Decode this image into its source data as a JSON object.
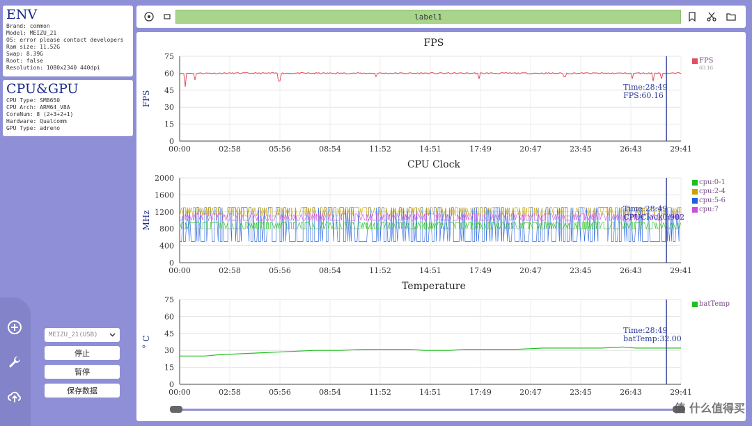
{
  "env": {
    "title": "ENV",
    "lines": [
      "Brand: common",
      "Model: MEIZU_21",
      "OS: error please contact developers",
      "Ram size: 11.52G",
      "Swap: 8.39G",
      "Root: false",
      "Resolution: 1080x2340 440dpi"
    ]
  },
  "cpu_gpu": {
    "title": "CPU&GPU",
    "lines": [
      "CPU Type: SM8650",
      "CPU Arch: ARM64_V8A",
      "CoreNum: 8 (2+3+2+1)",
      "Hardware: Qualcomm",
      "GPU Type: adreno"
    ]
  },
  "controls": {
    "device": "MEIZU_21(USB)",
    "stop_label": "停止",
    "pause_label": "暂停",
    "save_label": "保存数据"
  },
  "toolbar": {
    "label": "label1"
  },
  "watermark": "值 什么值得买",
  "colors": {
    "fps": "#e0505f",
    "cpu01": "#1fbf1f",
    "cpu24": "#c9a300",
    "cpu56": "#1f5fe0",
    "cpu7": "#c94fe0",
    "batTemp": "#1fbf1f",
    "cursor": "#3f4a9a"
  },
  "chart_data": [
    {
      "type": "line",
      "title": "FPS",
      "ylabel": "FPS",
      "ylim": [
        0,
        75
      ],
      "yticks": [
        0,
        15,
        30,
        45,
        60,
        75
      ],
      "xticks": [
        "00:00",
        "02:58",
        "05:56",
        "08:54",
        "11:52",
        "14:51",
        "17:49",
        "20:47",
        "23:45",
        "26:43",
        "29:41"
      ],
      "series": [
        {
          "name": "FPS",
          "legend_value": "60.16",
          "baseline": 60,
          "dips": [
            [
              0.3,
              48
            ],
            [
              0.9,
              54
            ],
            [
              5.9,
              53
            ],
            [
              11.6,
              57
            ],
            [
              17.7,
              55
            ],
            [
              22.8,
              57
            ],
            [
              26.8,
              55
            ],
            [
              28.0,
              53
            ],
            [
              28.5,
              55
            ]
          ]
        }
      ],
      "cursor": {
        "x": 28.82,
        "labels": [
          "Time:28:49",
          "FPS:60.16"
        ]
      }
    },
    {
      "type": "line",
      "title": "CPU Clock",
      "ylabel": "MHz",
      "ylim": [
        0,
        2000
      ],
      "yticks": [
        0,
        400,
        800,
        1200,
        1600,
        2000
      ],
      "xticks": [
        "00:00",
        "02:58",
        "05:56",
        "08:54",
        "11:52",
        "14:51",
        "17:49",
        "20:47",
        "23:45",
        "26:43",
        "29:41"
      ],
      "series": [
        {
          "name": "cpu:0-1",
          "low": 800,
          "high": 950
        },
        {
          "name": "cpu:2-4",
          "low": 1100,
          "high": 1300
        },
        {
          "name": "cpu:5-6",
          "low": 500,
          "high": 1300
        },
        {
          "name": "cpu:7",
          "low": 1000,
          "high": 1150
        }
      ],
      "cursor": {
        "x": 28.82,
        "labels": [
          "Time:28:49",
          "CPUClock0:902"
        ]
      }
    },
    {
      "type": "line",
      "title": "Temperature",
      "ylabel": "° C",
      "ylim": [
        0,
        75
      ],
      "yticks": [
        0,
        15,
        30,
        45,
        60,
        75
      ],
      "xticks": [
        "00:00",
        "02:58",
        "05:56",
        "08:54",
        "11:52",
        "14:51",
        "17:49",
        "20:47",
        "23:45",
        "26:43",
        "29:41"
      ],
      "series": [
        {
          "name": "batTemp",
          "points": [
            [
              0,
              25
            ],
            [
              1.5,
              25
            ],
            [
              2.2,
              26
            ],
            [
              3.5,
              27
            ],
            [
              5.0,
              28
            ],
            [
              6.5,
              29
            ],
            [
              8.0,
              30
            ],
            [
              9.5,
              30
            ],
            [
              11.0,
              31
            ],
            [
              13.5,
              31
            ],
            [
              14.5,
              30
            ],
            [
              16.0,
              30
            ],
            [
              17.0,
              31
            ],
            [
              20.0,
              31
            ],
            [
              21.5,
              32
            ],
            [
              25.0,
              32
            ],
            [
              26.2,
              33
            ],
            [
              27.0,
              32
            ],
            [
              29.68,
              32
            ]
          ]
        }
      ],
      "cursor": {
        "x": 28.82,
        "labels": [
          "Time:28:49",
          "batTemp:32.00"
        ]
      }
    }
  ]
}
